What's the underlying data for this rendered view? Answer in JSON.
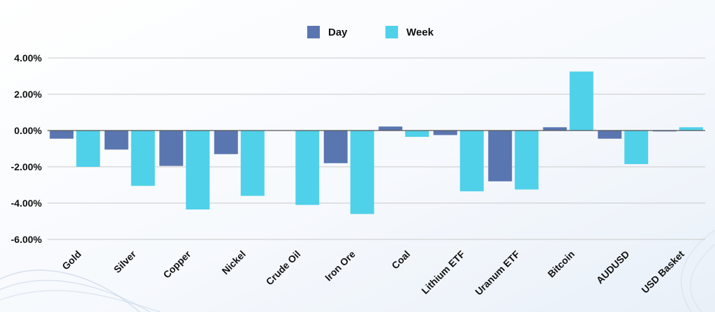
{
  "chart_data": {
    "type": "bar",
    "title": "",
    "xlabel": "",
    "ylabel": "",
    "categories": [
      "Gold",
      "Silver",
      "Copper",
      "Nickel",
      "Crude Oil",
      "Iron Ore",
      "Coal",
      "Lithium ETF",
      "Uranum ETF",
      "Bitcoin",
      "AUDUSD",
      "USD Basket"
    ],
    "series": [
      {
        "name": "Day",
        "color": "#5a76b0",
        "values": [
          -0.45,
          -1.05,
          -1.95,
          -1.3,
          0.0,
          -1.8,
          0.22,
          -0.25,
          -2.8,
          0.18,
          -0.45,
          -0.05
        ]
      },
      {
        "name": "Week",
        "color": "#4fd1ea",
        "values": [
          -2.0,
          -3.05,
          -4.35,
          -3.6,
          -4.1,
          -4.6,
          -0.35,
          -3.35,
          -3.25,
          3.25,
          -1.85,
          0.18
        ]
      }
    ],
    "ylim": [
      -6,
      4
    ],
    "y_ticks": [
      4,
      2,
      0,
      -2,
      -4,
      -6
    ],
    "y_tick_labels": [
      "4.00%",
      "2.00%",
      "0.00%",
      "-2.00%",
      "-4.00%",
      "-6.00%"
    ],
    "grid": true,
    "legend_position": "top-center"
  }
}
